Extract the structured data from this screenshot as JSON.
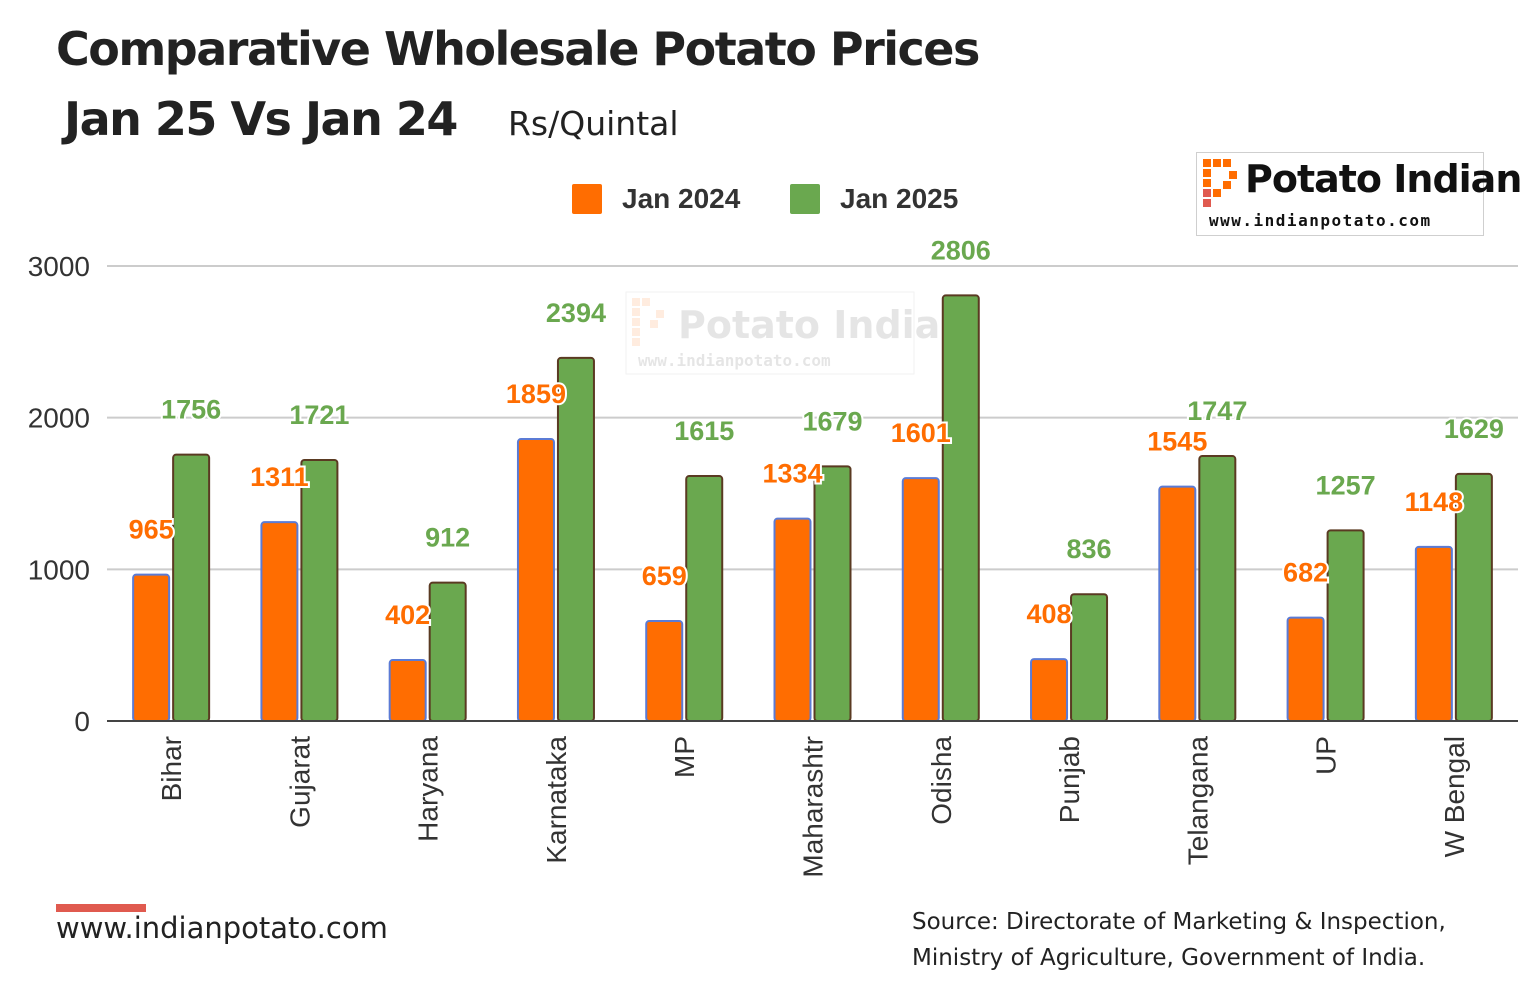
{
  "title": "Comparative Wholesale Potato Prices",
  "subtitle": "Jan 25  Vs Jan 24",
  "unit": "Rs/Quintal",
  "logo": {
    "name": "Potato Indian",
    "url": "www.indianpotato.com"
  },
  "watermark": {
    "name": "Potato Indian",
    "url": "www.indianpotato.com"
  },
  "footer": {
    "url": "www.indianpotato.com",
    "source_line1": "Source: Directorate of Marketing & Inspection,",
    "source_line2": "Ministry of Agriculture, Government of India."
  },
  "colors": {
    "jan2024": "#ff6d01",
    "jan2025": "#6aa84f",
    "label2024": "#ff6d01",
    "label2025": "#6aa84f",
    "accent": "#e05a4f"
  },
  "chart_data": {
    "type": "bar",
    "categories": [
      "Bihar",
      "Gujarat",
      "Haryana",
      "Karnataka",
      "MP",
      "Maharashtr",
      "Odisha",
      "Punjab",
      "Telangana",
      "UP",
      "W Bengal"
    ],
    "series": [
      {
        "name": "Jan 2024",
        "values": [
          965,
          1311,
          402,
          1859,
          659,
          1334,
          1601,
          408,
          1545,
          682,
          1148
        ]
      },
      {
        "name": "Jan 2025",
        "values": [
          1756,
          1721,
          912,
          2394,
          1615,
          1679,
          2806,
          836,
          1747,
          1257,
          1629
        ]
      }
    ],
    "yticks": [
      "0",
      "1000",
      "2000",
      "3000"
    ],
    "ylim": [
      0,
      3000
    ],
    "grid": true,
    "legend": "top-center"
  }
}
